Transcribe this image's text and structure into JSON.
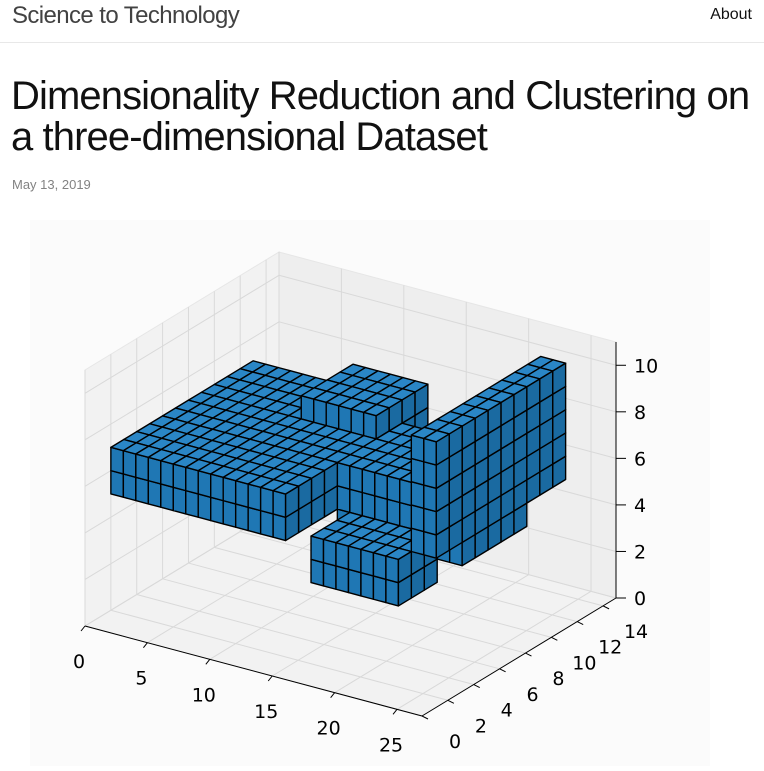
{
  "header": {
    "site_title": "Science to Technology",
    "nav": {
      "about": "About"
    }
  },
  "post": {
    "title": "Dimensionality Reduction and Clustering on a three-dimensional Dataset",
    "date": "May 13, 2019"
  },
  "colors": {
    "voxel_face": "#1f77b4",
    "voxel_edge": "#000000",
    "grid": "#d9d9d9",
    "pane": "#f2f2f2"
  },
  "chart_data": {
    "type": "voxel3d",
    "title": "",
    "x_ticks": [
      "0",
      "5",
      "10",
      "15",
      "20",
      "25"
    ],
    "y_ticks": [
      "0",
      "2",
      "4",
      "6",
      "8",
      "10",
      "12",
      "14"
    ],
    "z_ticks": [
      "0",
      "2",
      "4",
      "6",
      "8",
      "10"
    ],
    "xlim": [
      0,
      27
    ],
    "ylim": [
      0,
      15
    ],
    "zlim": [
      0,
      11
    ],
    "grid": true,
    "voxel_regions": [
      {
        "x": [
          0,
          14
        ],
        "y": [
          2,
          13
        ],
        "z": [
          5,
          7
        ]
      },
      {
        "x": [
          8,
          14
        ],
        "y": [
          9,
          13
        ],
        "z": [
          7,
          8
        ]
      },
      {
        "x": [
          14,
          24
        ],
        "y": [
          6,
          11
        ],
        "z": [
          4,
          7
        ]
      },
      {
        "x": [
          15,
          22
        ],
        "y": [
          3,
          6
        ],
        "z": [
          3,
          5
        ]
      },
      {
        "x": [
          22,
          24
        ],
        "y": [
          4,
          14
        ],
        "z": [
          5,
          10
        ]
      }
    ]
  }
}
